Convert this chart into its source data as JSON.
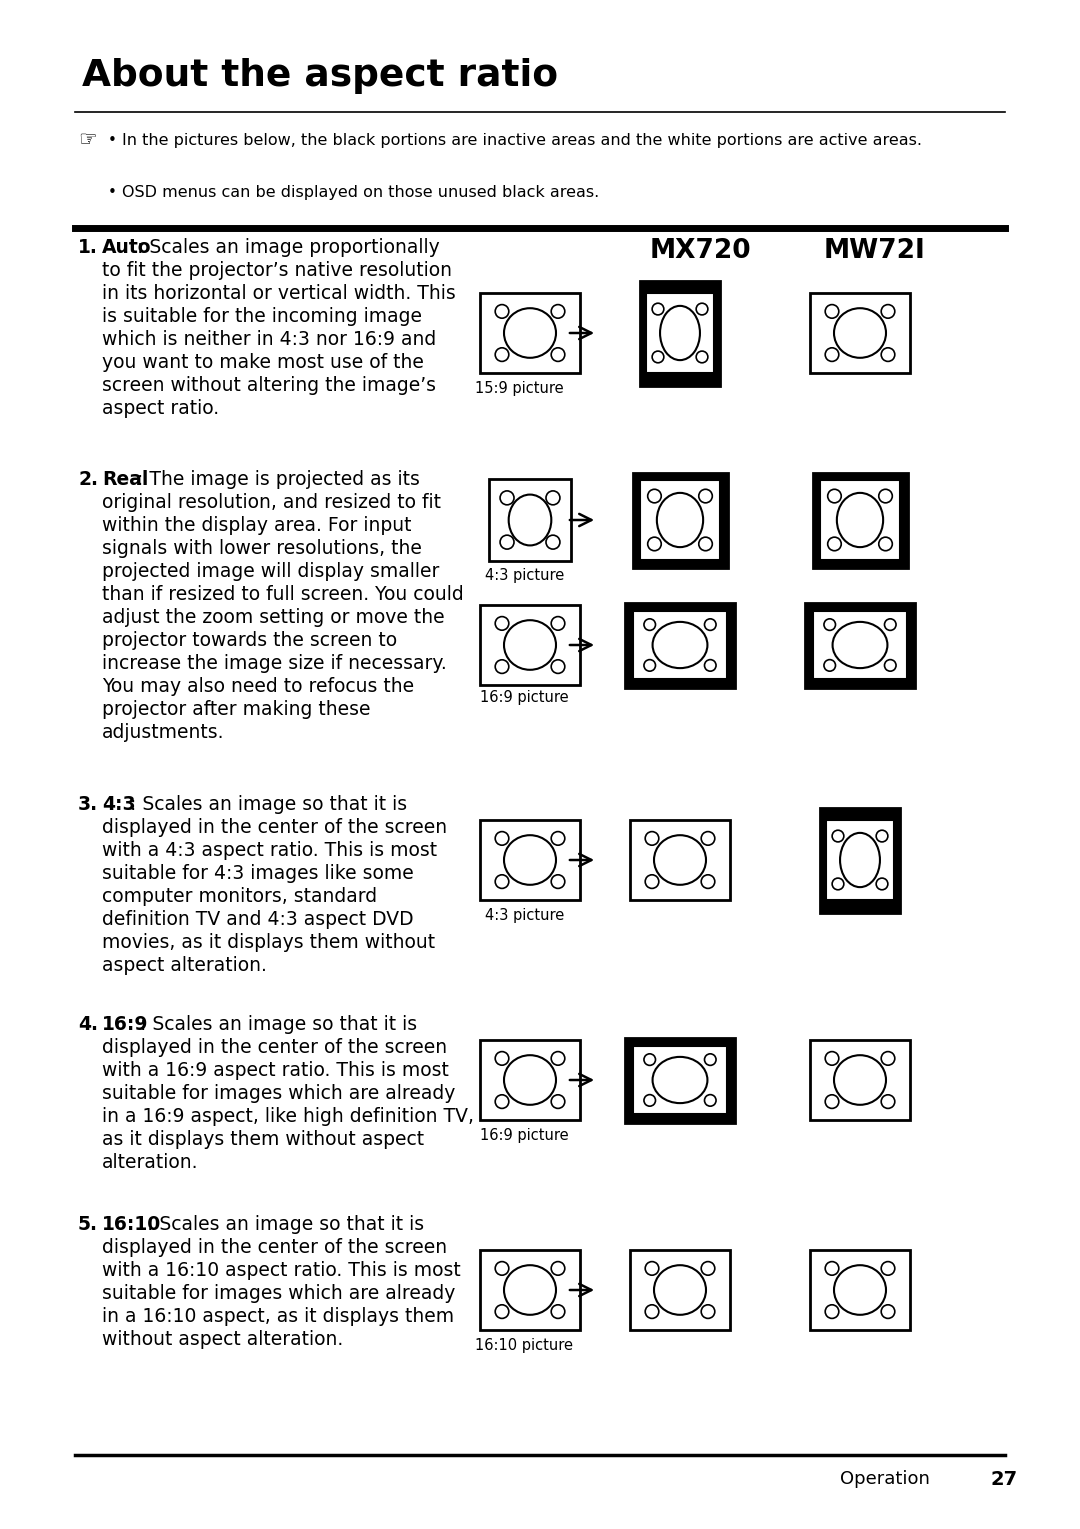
{
  "title": "About the aspect ratio",
  "bg_color": "#ffffff",
  "text_color": "#000000",
  "page_number": "27",
  "page_label": "Operation",
  "header_note": "In the pictures below, the black portions are inactive areas and the white portions are active areas.",
  "bullet_note": "OSD menus can be displayed on those unused black areas.",
  "col_headers": [
    "MX720",
    "MW72I"
  ],
  "sections": [
    {
      "num": "1.",
      "bold_part": "Auto",
      "lines": [
        ": Scales an image proportionally",
        "to fit the projector’s native resolution",
        "in its horizontal or vertical width. This",
        "is suitable for the incoming image",
        "which is neither in 4:3 nor 16:9 and",
        "you want to make most use of the",
        "screen without altering the image’s",
        "aspect ratio."
      ],
      "diagrams": [
        {
          "label": "15:9 picture",
          "src": "wide_white_sq",
          "mx720": "portrait_black",
          "mw721": "wide_white_sq"
        }
      ]
    },
    {
      "num": "2.",
      "bold_part": "Real",
      "lines": [
        ": The image is projected as its",
        "original resolution, and resized to fit",
        "within the display area. For input",
        "signals with lower resolutions, the",
        "projected image will display smaller",
        "than if resized to full screen. You could",
        "adjust the zoom setting or move the",
        "projector towards the screen to",
        "increase the image size if necessary.",
        "You may also need to refocus the",
        "projector after making these",
        "adjustments."
      ],
      "diagrams": [
        {
          "label": "4:3 picture",
          "src": "square_white",
          "mx720": "square_black",
          "mw721": "square_black"
        },
        {
          "label": "16:9 picture",
          "src": "wide_white_sq",
          "mx720": "wide_black",
          "mw721": "wide_black"
        }
      ]
    },
    {
      "num": "3.",
      "bold_part": "4:3",
      "lines": [
        ": Scales an image so that it is",
        "displayed in the center of the screen",
        "with a 4:3 aspect ratio. This is most",
        "suitable for 4:3 images like some",
        "computer monitors, standard",
        "definition TV and 4:3 aspect DVD",
        "movies, as it displays them without",
        "aspect alteration."
      ],
      "diagrams": [
        {
          "label": "4:3 picture",
          "src": "wide_white_sq",
          "mx720": "wide_white_sq",
          "mw721": "portrait_black"
        }
      ]
    },
    {
      "num": "4.",
      "bold_part": "16:9",
      "lines": [
        ": Scales an image so that it is",
        "displayed in the center of the screen",
        "with a 16:9 aspect ratio. This is most",
        "suitable for images which are already",
        "in a 16:9 aspect, like high definition TV,",
        "as it displays them without aspect",
        "alteration."
      ],
      "diagrams": [
        {
          "label": "16:9 picture",
          "src": "wide_white_sq",
          "mx720": "wide_black_bars",
          "mw721": "wide_white_sq"
        }
      ]
    },
    {
      "num": "5.",
      "bold_part": "16:10",
      "lines": [
        ": Scales an image so that it is",
        "displayed in the center of the screen",
        "with a 16:10 aspect ratio. This is most",
        "suitable for images which are already",
        "in a 16:10 aspect, as it displays them",
        "without aspect alteration."
      ],
      "diagrams": [
        {
          "label": "16:10 picture",
          "src": "wide_white_sq",
          "mx720": "wide_white_sq",
          "mw721": "wide_white_sq"
        }
      ]
    }
  ]
}
